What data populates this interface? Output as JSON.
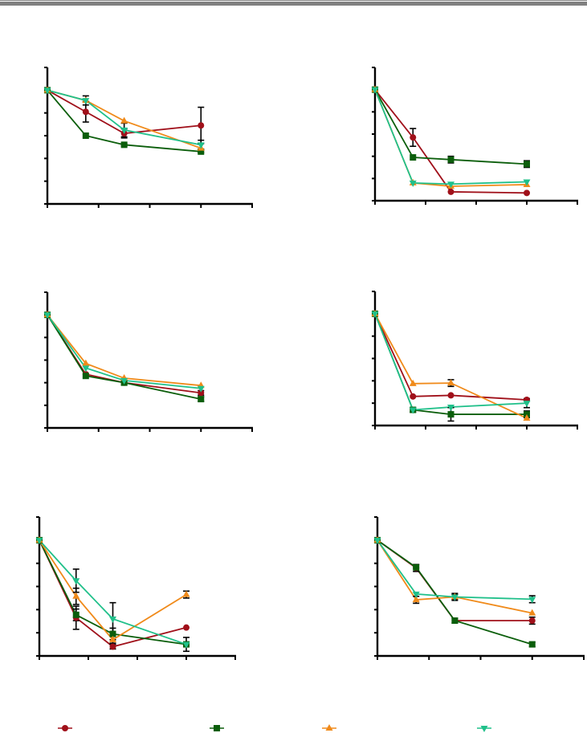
{
  "colors": {
    "series_1": "#a0101a",
    "series_2": "#0b5e0b",
    "series_3": "#f08a1a",
    "series_4": "#20c08a",
    "axis": "#000000",
    "header_bar": "#808080"
  },
  "legend": {
    "items": [
      {
        "series": "series_1",
        "marker": "circle"
      },
      {
        "series": "series_2",
        "marker": "square"
      },
      {
        "series": "series_3",
        "marker": "triangle-up"
      },
      {
        "series": "series_4",
        "marker": "triangle-down"
      }
    ]
  },
  "chart_data": [
    {
      "type": "line",
      "panel": "top-left",
      "title": "",
      "xlabel": "",
      "ylabel": "",
      "x": [
        0,
        0.75,
        1.5,
        3
      ],
      "xlim": [
        0,
        4
      ],
      "ylim": [
        0,
        120
      ],
      "x_ticks": 5,
      "y_ticks": 7,
      "series": [
        {
          "key": "series_1",
          "marker": "circle",
          "values": [
            100,
            81,
            62,
            69
          ],
          "errors": [
            0,
            9,
            4,
            16
          ]
        },
        {
          "key": "series_2",
          "marker": "square",
          "values": [
            100,
            60,
            52,
            46
          ],
          "errors": [
            0,
            0,
            1,
            1
          ]
        },
        {
          "key": "series_3",
          "marker": "triangle-up",
          "values": [
            100,
            91,
            73,
            49
          ],
          "errors": [
            0,
            0,
            0,
            0
          ]
        },
        {
          "key": "series_4",
          "marker": "triangle-down",
          "values": [
            100,
            91,
            65,
            52
          ],
          "errors": [
            0,
            4,
            6,
            4
          ]
        }
      ]
    },
    {
      "type": "line",
      "panel": "top-right",
      "title": "",
      "xlabel": "",
      "ylabel": "",
      "x": [
        0,
        0.75,
        1.5,
        3
      ],
      "xlim": [
        0,
        4
      ],
      "ylim": [
        0,
        120
      ],
      "x_ticks": 5,
      "y_ticks": 7,
      "series": [
        {
          "key": "series_1",
          "marker": "circle",
          "values": [
            100,
            57,
            8,
            7
          ],
          "errors": [
            0,
            8,
            0,
            0
          ]
        },
        {
          "key": "series_2",
          "marker": "square",
          "values": [
            100,
            39,
            37,
            33
          ],
          "errors": [
            0,
            0,
            3,
            3
          ]
        },
        {
          "key": "series_3",
          "marker": "triangle-up",
          "values": [
            100,
            16,
            13,
            14.5
          ],
          "errors": [
            0,
            0,
            0,
            0
          ]
        },
        {
          "key": "series_4",
          "marker": "triangle-down",
          "values": [
            100,
            16,
            15,
            17
          ],
          "errors": [
            0,
            0,
            0,
            0
          ]
        }
      ]
    },
    {
      "type": "line",
      "panel": "middle-left",
      "title": "",
      "xlabel": "",
      "ylabel": "",
      "x": [
        0,
        0.75,
        1.5,
        3
      ],
      "xlim": [
        0,
        4
      ],
      "ylim": [
        0,
        120
      ],
      "x_ticks": 5,
      "y_ticks": 7,
      "series": [
        {
          "key": "series_1",
          "marker": "circle",
          "values": [
            100,
            47.5,
            40,
            31
          ],
          "errors": [
            0,
            0,
            2,
            2
          ]
        },
        {
          "key": "series_2",
          "marker": "square",
          "values": [
            100,
            46,
            40,
            25.5
          ],
          "errors": [
            0,
            0,
            0,
            2
          ]
        },
        {
          "key": "series_3",
          "marker": "triangle-up",
          "values": [
            100,
            57,
            44,
            37.5
          ],
          "errors": [
            0,
            0,
            0,
            0
          ]
        },
        {
          "key": "series_4",
          "marker": "triangle-down",
          "values": [
            100,
            53,
            42,
            35
          ],
          "errors": [
            0,
            0,
            0,
            0
          ]
        }
      ]
    },
    {
      "type": "line",
      "panel": "middle-right",
      "title": "",
      "xlabel": "",
      "ylabel": "",
      "x": [
        0,
        0.75,
        1.5,
        3
      ],
      "xlim": [
        0,
        4
      ],
      "ylim": [
        0,
        120
      ],
      "x_ticks": 5,
      "y_ticks": 7,
      "series": [
        {
          "key": "series_1",
          "marker": "circle",
          "values": [
            100,
            26,
            27,
            23
          ],
          "errors": [
            0,
            0,
            0,
            1
          ]
        },
        {
          "key": "series_2",
          "marker": "square",
          "values": [
            100,
            14,
            10,
            10
          ],
          "errors": [
            0,
            2,
            6,
            3
          ]
        },
        {
          "key": "series_3",
          "marker": "triangle-up",
          "values": [
            100,
            37.5,
            38,
            6.5
          ],
          "errors": [
            0,
            0,
            3,
            0
          ]
        },
        {
          "key": "series_4",
          "marker": "triangle-down",
          "values": [
            100,
            14,
            16.5,
            20
          ],
          "errors": [
            0,
            0,
            0,
            4
          ]
        }
      ]
    },
    {
      "type": "line",
      "panel": "bottom-left",
      "title": "",
      "xlabel": "",
      "ylabel": "",
      "x": [
        0,
        0.75,
        1.5,
        3
      ],
      "xlim": [
        0,
        4
      ],
      "ylim": [
        0,
        120
      ],
      "x_ticks": 5,
      "y_ticks": 7,
      "series": [
        {
          "key": "series_1",
          "marker": "circle",
          "values": [
            100,
            33,
            8,
            24.5
          ],
          "errors": [
            0,
            10,
            2,
            0
          ]
        },
        {
          "key": "series_2",
          "marker": "square",
          "values": [
            100,
            35.5,
            19,
            10
          ],
          "errors": [
            0,
            5,
            5,
            2
          ]
        },
        {
          "key": "series_3",
          "marker": "triangle-up",
          "values": [
            100,
            51.5,
            14,
            53
          ],
          "errors": [
            0,
            7,
            3,
            3
          ]
        },
        {
          "key": "series_4",
          "marker": "triangle-down",
          "values": [
            100,
            65,
            32,
            10
          ],
          "errors": [
            0,
            10,
            14,
            6
          ]
        }
      ]
    },
    {
      "type": "line",
      "panel": "bottom-right",
      "title": "",
      "xlabel": "",
      "ylabel": "",
      "x": [
        0,
        0.75,
        1.5,
        3
      ],
      "xlim": [
        0,
        4
      ],
      "ylim": [
        0,
        120
      ],
      "x_ticks": 5,
      "y_ticks": 7,
      "series": [
        {
          "key": "series_1",
          "marker": "circle",
          "values": [
            100,
            76,
            30.5,
            30.5
          ],
          "errors": [
            0,
            3,
            0,
            3
          ]
        },
        {
          "key": "series_2",
          "marker": "square",
          "values": [
            100,
            76.5,
            30.5,
            10
          ],
          "errors": [
            0,
            0,
            2,
            2
          ]
        },
        {
          "key": "series_3",
          "marker": "triangle-up",
          "values": [
            100,
            48.5,
            51,
            37
          ],
          "errors": [
            0,
            3,
            2,
            0
          ]
        },
        {
          "key": "series_4",
          "marker": "triangle-down",
          "values": [
            100,
            53.5,
            51,
            49
          ],
          "errors": [
            0,
            0,
            3,
            3
          ]
        }
      ]
    }
  ]
}
